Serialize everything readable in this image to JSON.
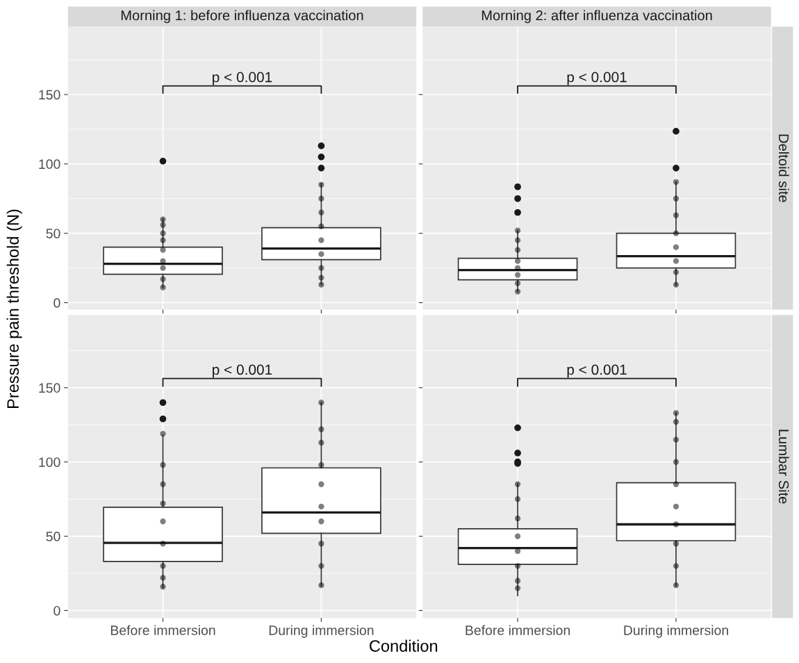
{
  "chart_data": [
    {
      "type": "box",
      "title": "Morning 1: before influenza vaccination",
      "ylabel": "Pressure pain threshold (N)",
      "categories": [
        "Before immersion",
        "During immersion"
      ],
      "ylim": [
        -5,
        199
      ],
      "yticks": [
        0,
        50,
        100,
        150
      ],
      "grid": true,
      "tick_labels": "y",
      "annotations": [
        "p < 0.001"
      ],
      "boxes": [
        {
          "low": 11,
          "q1": 20.5,
          "median": 28,
          "q3": 40,
          "high": 60.5,
          "outliers": [
            102
          ]
        },
        {
          "low": 13,
          "q1": 31,
          "median": 39,
          "q3": 54,
          "high": 86,
          "outliers": [
            113,
            105,
            97
          ]
        }
      ],
      "series": [
        {
          "type": "scatter",
          "color": "#000000",
          "x": [
            "Before immersion",
            "Before immersion",
            "Before immersion",
            "Before immersion",
            "Before immersion",
            "Before immersion",
            "Before immersion",
            "Before immersion",
            "Before immersion",
            "During immersion",
            "During immersion",
            "During immersion",
            "During immersion",
            "During immersion",
            "During immersion",
            "During immersion",
            "During immersion",
            "During immersion"
          ],
          "values": [
            56,
            60,
            50,
            45,
            38,
            30,
            25,
            17,
            11,
            85,
            75,
            65,
            55,
            45,
            35,
            25,
            18,
            13
          ]
        }
      ]
    },
    {
      "type": "box",
      "title": "Morning 2: after influenza vaccination",
      "y2label": "Deltoid site",
      "categories": [
        "Before immersion",
        "During immersion"
      ],
      "ylim": [
        -5,
        199
      ],
      "yticks": [
        0,
        50,
        100,
        150
      ],
      "grid": true,
      "tick_labels": false,
      "annotations": [
        "p < 0.001"
      ],
      "boxes": [
        {
          "low": 8,
          "q1": 16.5,
          "median": 23.5,
          "q3": 32,
          "high": 52,
          "outliers": [
            83.5,
            75,
            65
          ]
        },
        {
          "low": 12.5,
          "q1": 25,
          "median": 33.5,
          "q3": 50,
          "high": 87,
          "outliers": [
            123.5,
            97
          ]
        }
      ],
      "series": [
        {
          "type": "scatter",
          "color": "#000000",
          "x": [
            "Before immersion",
            "Before immersion",
            "Before immersion",
            "Before immersion",
            "Before immersion",
            "Before immersion",
            "Before immersion",
            "Before immersion",
            "During immersion",
            "During immersion",
            "During immersion",
            "During immersion",
            "During immersion",
            "During immersion",
            "During immersion",
            "During immersion"
          ],
          "values": [
            52,
            45,
            38,
            30,
            25,
            20,
            14,
            8,
            87,
            75,
            63,
            50,
            40,
            30,
            22,
            13
          ]
        }
      ]
    },
    {
      "type": "box",
      "xlabel": "Condition",
      "categories": [
        "Before immersion",
        "During immersion"
      ],
      "ylim": [
        -5,
        199
      ],
      "yticks": [
        0,
        50,
        100,
        150
      ],
      "grid": true,
      "annotations": [
        "p < 0.001"
      ],
      "boxes": [
        {
          "low": 15.5,
          "q1": 33,
          "median": 45.5,
          "q3": 69.5,
          "high": 118,
          "outliers": [
            140,
            129
          ]
        },
        {
          "low": 16.5,
          "q1": 52,
          "median": 66,
          "q3": 96,
          "high": 140
        }
      ],
      "series": [
        {
          "type": "scatter",
          "color": "#000000",
          "x": [
            "Before immersion",
            "Before immersion",
            "Before immersion",
            "Before immersion",
            "Before immersion",
            "Before immersion",
            "Before immersion",
            "Before immersion",
            "Before immersion",
            "During immersion",
            "During immersion",
            "During immersion",
            "During immersion",
            "During immersion",
            "During immersion",
            "During immersion",
            "During immersion",
            "During immersion",
            "During immersion"
          ],
          "values": [
            119,
            98,
            85,
            72,
            60,
            45,
            30,
            22,
            16,
            140,
            122,
            113,
            98,
            85,
            70,
            60,
            45,
            30,
            17
          ]
        }
      ]
    },
    {
      "type": "box",
      "y2label": "Lumbar Site",
      "categories": [
        "Before immersion",
        "During immersion"
      ],
      "ylim": [
        -5,
        199
      ],
      "yticks": [
        0,
        50,
        100,
        150
      ],
      "grid": true,
      "tick_labels": "x",
      "annotations": [
        "p < 0.001"
      ],
      "boxes": [
        {
          "low": 10,
          "q1": 31,
          "median": 42,
          "q3": 55,
          "high": 85.5,
          "outliers": [
            123,
            106,
            100,
            99
          ]
        },
        {
          "low": 16.5,
          "q1": 47,
          "median": 58,
          "q3": 86,
          "high": 133
        }
      ],
      "series": [
        {
          "type": "scatter",
          "color": "#000000",
          "x": [
            "Before immersion",
            "Before immersion",
            "Before immersion",
            "Before immersion",
            "Before immersion",
            "Before immersion",
            "Before immersion",
            "Before immersion",
            "During immersion",
            "During immersion",
            "During immersion",
            "During immersion",
            "During immersion",
            "During immersion",
            "During immersion",
            "During immersion",
            "During immersion",
            "During immersion"
          ],
          "values": [
            85,
            75,
            62,
            50,
            40,
            30,
            20,
            15,
            133,
            127,
            115,
            100,
            85,
            70,
            58,
            45,
            30,
            17
          ]
        }
      ]
    }
  ]
}
